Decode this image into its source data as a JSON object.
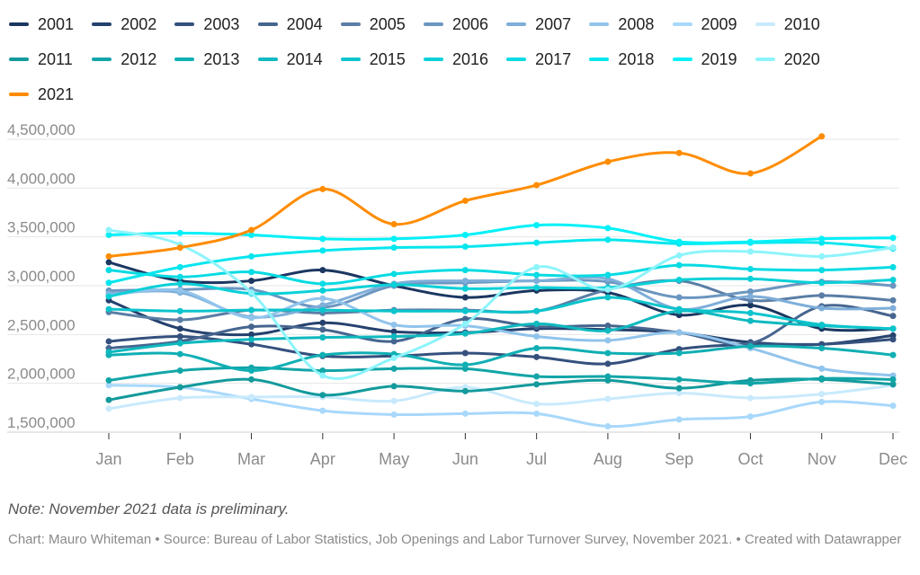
{
  "chart_data": {
    "type": "line",
    "title": "",
    "xlabel": "",
    "ylabel": "",
    "categories": [
      "Jan",
      "Feb",
      "Mar",
      "Apr",
      "May",
      "Jun",
      "Jul",
      "Aug",
      "Sep",
      "Oct",
      "Nov",
      "Dec"
    ],
    "ylim": [
      1500000,
      4500000
    ],
    "yticks": [
      1500000,
      2000000,
      2500000,
      3000000,
      3500000,
      4000000,
      4500000
    ],
    "ytick_labels": [
      "1,500,000",
      "2,000,000",
      "2,500,000",
      "3,000,000",
      "3,500,000",
      "4,000,000",
      "4,500,000"
    ],
    "grid": true,
    "legend_position": "top",
    "series": [
      {
        "name": "2001",
        "color": "#1b3761",
        "values": [
          3240000,
          3050000,
          3050000,
          3160000,
          3000000,
          2880000,
          2950000,
          2930000,
          2700000,
          2800000,
          2560000,
          2560000
        ]
      },
      {
        "name": "2002",
        "color": "#25416e",
        "values": [
          2850000,
          2560000,
          2500000,
          2620000,
          2530000,
          2520000,
          2560000,
          2550000,
          2520000,
          2420000,
          2400000,
          2490000
        ]
      },
      {
        "name": "2003",
        "color": "#34507d",
        "values": [
          2430000,
          2480000,
          2400000,
          2280000,
          2280000,
          2310000,
          2270000,
          2200000,
          2350000,
          2400000,
          2400000,
          2450000
        ]
      },
      {
        "name": "2004",
        "color": "#46658f",
        "values": [
          2360000,
          2430000,
          2580000,
          2550000,
          2430000,
          2660000,
          2580000,
          2590000,
          2520000,
          2410000,
          2790000,
          2690000
        ]
      },
      {
        "name": "2005",
        "color": "#5a7ea6",
        "values": [
          2730000,
          2650000,
          2750000,
          2720000,
          2750000,
          2750000,
          2740000,
          2960000,
          3050000,
          2850000,
          2900000,
          2850000
        ]
      },
      {
        "name": "2006",
        "color": "#6b96c0",
        "values": [
          2950000,
          2960000,
          2960000,
          2780000,
          3000000,
          3030000,
          3050000,
          3040000,
          2880000,
          2940000,
          3040000,
          3000000
        ]
      },
      {
        "name": "2007",
        "color": "#7eaed9",
        "values": [
          2920000,
          2930000,
          2680000,
          2800000,
          3020000,
          3050000,
          3050000,
          3070000,
          2760000,
          2890000,
          2770000,
          2770000
        ]
      },
      {
        "name": "2008",
        "color": "#91c4eb",
        "values": [
          2900000,
          2950000,
          2670000,
          2870000,
          2600000,
          2590000,
          2480000,
          2440000,
          2520000,
          2360000,
          2150000,
          2080000
        ]
      },
      {
        "name": "2009",
        "color": "#a8d8fb",
        "values": [
          1980000,
          1960000,
          1840000,
          1720000,
          1680000,
          1690000,
          1690000,
          1560000,
          1630000,
          1660000,
          1810000,
          1770000
        ]
      },
      {
        "name": "2010",
        "color": "#c9eafd",
        "values": [
          1740000,
          1850000,
          1860000,
          1860000,
          1820000,
          1960000,
          1790000,
          1840000,
          1900000,
          1850000,
          1890000,
          1980000
        ]
      },
      {
        "name": "2011",
        "color": "#139a9c",
        "values": [
          1830000,
          1960000,
          2040000,
          1880000,
          1970000,
          1920000,
          1990000,
          2030000,
          1950000,
          2030000,
          2040000,
          1990000
        ]
      },
      {
        "name": "2012",
        "color": "#12a5a8",
        "values": [
          2030000,
          2130000,
          2160000,
          2130000,
          2150000,
          2150000,
          2070000,
          2070000,
          2040000,
          2000000,
          2050000,
          2040000
        ]
      },
      {
        "name": "2013",
        "color": "#10afb4",
        "values": [
          2290000,
          2300000,
          2130000,
          2290000,
          2300000,
          2190000,
          2360000,
          2310000,
          2310000,
          2380000,
          2360000,
          2290000
        ]
      },
      {
        "name": "2014",
        "color": "#0eb9bf",
        "values": [
          2320000,
          2410000,
          2450000,
          2470000,
          2480000,
          2510000,
          2610000,
          2540000,
          2740000,
          2640000,
          2590000,
          2560000
        ]
      },
      {
        "name": "2015",
        "color": "#0cc4cc",
        "values": [
          2760000,
          2740000,
          2750000,
          2750000,
          2740000,
          2740000,
          2740000,
          2880000,
          2760000,
          2720000,
          2600000,
          2560000
        ]
      },
      {
        "name": "2016",
        "color": "#0ad0d8",
        "values": [
          2890000,
          3020000,
          2920000,
          2950000,
          3010000,
          2970000,
          2980000,
          2980000,
          3060000,
          3070000,
          3030000,
          3060000
        ]
      },
      {
        "name": "2017",
        "color": "#08dbe3",
        "values": [
          3160000,
          3090000,
          3140000,
          3020000,
          3120000,
          3160000,
          3110000,
          3110000,
          3210000,
          3170000,
          3160000,
          3190000
        ]
      },
      {
        "name": "2018",
        "color": "#05e6ee",
        "values": [
          3030000,
          3190000,
          3300000,
          3360000,
          3390000,
          3400000,
          3440000,
          3470000,
          3430000,
          3440000,
          3440000,
          3380000
        ]
      },
      {
        "name": "2019",
        "color": "#02f0f8",
        "values": [
          3520000,
          3540000,
          3520000,
          3480000,
          3480000,
          3520000,
          3620000,
          3590000,
          3450000,
          3450000,
          3480000,
          3490000
        ]
      },
      {
        "name": "2020",
        "color": "#8df4fb",
        "values": [
          3570000,
          3420000,
          2930000,
          2080000,
          2260000,
          2610000,
          3190000,
          2960000,
          3310000,
          3350000,
          3300000,
          3390000
        ]
      },
      {
        "name": "2021",
        "color": "#ff8c00",
        "values": [
          3300000,
          3390000,
          3570000,
          3990000,
          3630000,
          3870000,
          4030000,
          4270000,
          4360000,
          4150000,
          4530000,
          null
        ]
      }
    ]
  },
  "note": "Note: November 2021 data is preliminary.",
  "credit": "Chart: Mauro Whiteman • Source: Bureau of Labor Statistics, Job Openings and Labor Turnover Survey, November 2021. • Created with Datawrapper"
}
